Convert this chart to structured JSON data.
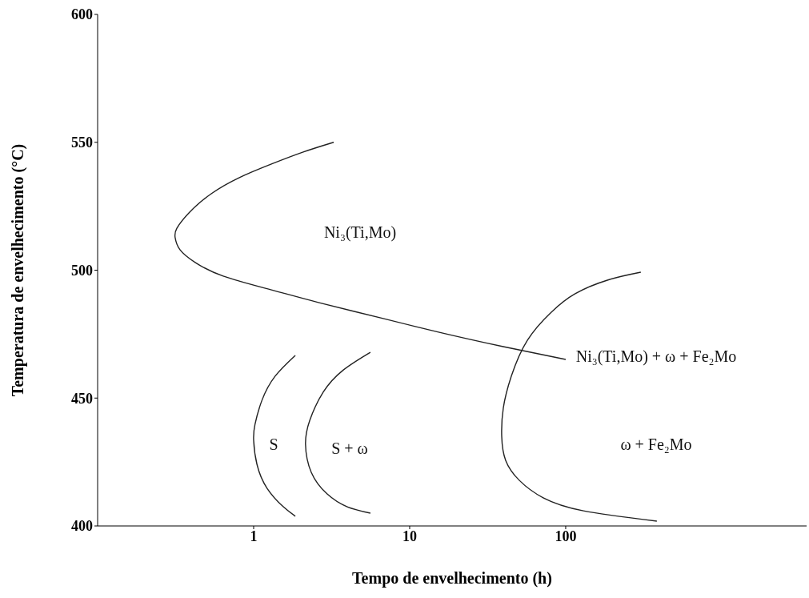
{
  "chart_data": {
    "type": "line",
    "xlabel": "Tempo de envelhecimento (h)",
    "ylabel": "Temperatura de envelhecimento (°C)",
    "log": "x",
    "xlim": [
      0.1,
      3500
    ],
    "xticks": [
      1,
      10,
      100
    ],
    "ylim": [
      400,
      600
    ],
    "yticks": [
      400,
      450,
      500,
      550,
      600
    ],
    "grid": false,
    "marker": "none",
    "line_style": "solid",
    "series": [
      {
        "color": "#222222",
        "x": [
          3.26,
          2.08,
          1.3,
          0.81,
          0.535,
          0.389,
          0.322,
          0.314,
          0.337,
          0.422,
          0.638,
          1.3,
          2.63,
          6.77,
          15.5,
          39.8,
          100
        ],
        "values": [
          550,
          546.2,
          541.5,
          536.2,
          529.9,
          522.7,
          516.4,
          512.7,
          508,
          503,
          497.7,
          492.3,
          487.3,
          481.1,
          475.7,
          470.1,
          465.1
        ]
      },
      {
        "color": "#222222",
        "x": [
          1.85,
          1.37,
          1.13,
          1.02,
          1.0,
          1.05,
          1.22,
          1.55,
          1.85
        ],
        "values": [
          466.7,
          458.5,
          449.1,
          439.7,
          433.5,
          424.1,
          414.7,
          407.5,
          403.8
        ]
      },
      {
        "color": "#222222",
        "x": [
          5.6,
          3.76,
          2.79,
          2.29,
          2.15,
          2.34,
          2.96,
          3.98,
          5.6
        ],
        "values": [
          467.9,
          461,
          452.3,
          441.3,
          431.9,
          421,
          412.5,
          407.5,
          405
        ]
      },
      {
        "color": "#222222",
        "x": [
          303,
          185,
          115,
          80.9,
          56.8,
          44.8,
          39.8,
          38.9,
          41.2,
          50.5,
          71.8,
          130,
          384
        ],
        "values": [
          499.2,
          496.1,
          490.8,
          483.6,
          472.6,
          458.5,
          446,
          435.1,
          425.7,
          417.8,
          411,
          405.9,
          401.9
        ]
      }
    ],
    "annotations": [
      "Ni₃(Ti,Mo)",
      "Ni₃(Ti,Mo) + ω + Fe₂Mo",
      "S",
      "S + ω",
      "ω  + Fe₂Mo"
    ]
  }
}
